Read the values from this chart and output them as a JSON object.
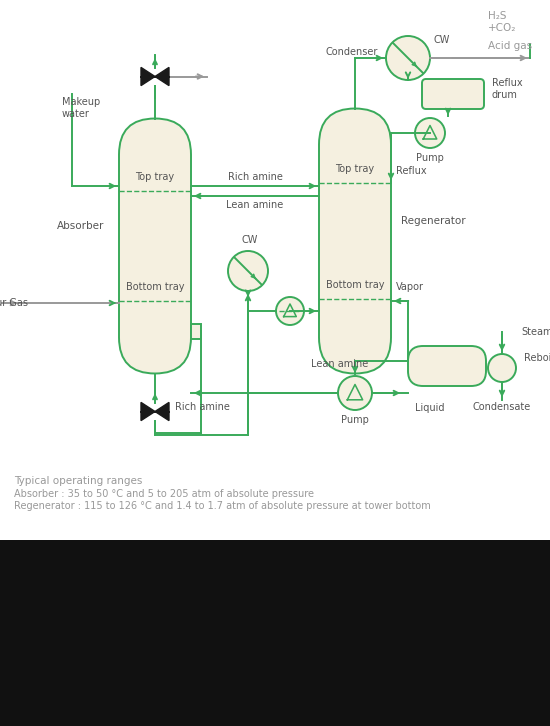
{
  "vessel_fill": "#f5f0e0",
  "vessel_edge": "#3aaa5a",
  "line_color": "#3aaa5a",
  "gray_color": "#999999",
  "text_color": "#555555",
  "black_color": "#111111",
  "line_width": 1.4,
  "typical_text": "Typical operating ranges",
  "absorber_range": "Absorber : 35 to 50 °C and 5 to 205 atm of absolute pressure",
  "regen_range": "Regenerator : 115 to 126 °C and 1.4 to 1.7 atm of absolute pressure at tower bottom",
  "h2s_line1": "H₂S",
  "h2s_line2": "+CO₂",
  "acid_gas": "Acid gas"
}
